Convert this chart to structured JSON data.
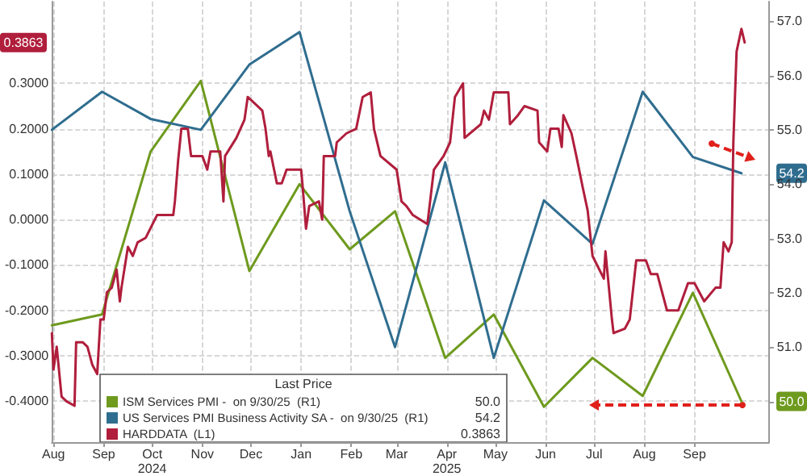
{
  "chart_data": {
    "type": "line",
    "xlim": [
      "2024-07-31",
      "2025-10-17"
    ],
    "xticks": [
      {
        "value": "2024-08-01",
        "label": "Aug"
      },
      {
        "value": "2024-09-01",
        "label": "Sep"
      },
      {
        "value": "2024-10-01",
        "label": "Oct\n2024"
      },
      {
        "value": "2024-11-01",
        "label": "Nov"
      },
      {
        "value": "2024-12-01",
        "label": "Dec"
      },
      {
        "value": "2025-01-01",
        "label": "Jan"
      },
      {
        "value": "2025-02-01",
        "label": "Feb"
      },
      {
        "value": "2025-03-01",
        "label": "Mar"
      },
      {
        "value": "2025-04-01",
        "label": "Apr\n2025"
      },
      {
        "value": "2025-05-01",
        "label": "May"
      },
      {
        "value": "2025-06-01",
        "label": "Jun"
      },
      {
        "value": "2025-07-01",
        "label": "Jul"
      },
      {
        "value": "2025-08-01",
        "label": "Aug"
      },
      {
        "value": "2025-09-01",
        "label": "Sep"
      }
    ],
    "ylim": [
      -0.49,
      0.48
    ],
    "yticks": [
      {
        "value": -0.4,
        "label": "-0.4000"
      },
      {
        "value": -0.3,
        "label": "-0.3000"
      },
      {
        "value": -0.2,
        "label": "-0.2000"
      },
      {
        "value": -0.1,
        "label": "-0.1000"
      },
      {
        "value": 0,
        "label": "0.0000"
      },
      {
        "value": 0.1,
        "label": "0.1000"
      },
      {
        "value": 0.2,
        "label": "0.2000"
      },
      {
        "value": 0.3,
        "label": "0.3000"
      }
    ],
    "y2lim": [
      49.25,
      57.36
    ],
    "y2ticks": [
      {
        "value": 50,
        "label": null
      },
      {
        "value": 51,
        "label": "51.0"
      },
      {
        "value": 52,
        "label": "52.0"
      },
      {
        "value": 53,
        "label": "53.0"
      },
      {
        "value": 54,
        "label": "54.0"
      },
      {
        "value": 55,
        "label": "55.0"
      },
      {
        "value": 56,
        "label": "56.0"
      },
      {
        "value": 57,
        "label": "57.0"
      }
    ],
    "grid": true,
    "legend": "bottom left",
    "legend_title": "Last Price",
    "marker": "none",
    "line_style": "solid",
    "annotations": [
      "50.0",
      "54.2",
      "0.3863"
    ],
    "series": [
      {
        "name": "ISM Services PMI -  on 9/30/25  (R1)",
        "color": "#6e9a1e",
        "axis": "y2",
        "x": [
          "2024-07-31",
          "2024-08-31",
          "2024-09-30",
          "2024-10-31",
          "2024-11-30",
          "2024-12-31",
          "2025-01-31",
          "2025-02-28",
          "2025-03-31",
          "2025-04-30",
          "2025-05-31",
          "2025-06-30",
          "2025-07-31",
          "2025-08-31",
          "2025-09-30"
        ],
        "values": [
          51.4,
          51.6,
          54.6,
          55.9,
          52.4,
          54.0,
          52.8,
          53.5,
          50.8,
          51.6,
          49.9,
          50.8,
          50.1,
          52.0,
          50.0
        ]
      },
      {
        "name": "US Services PMI Business Activity SA -  on 9/30/25  (R1)",
        "color": "#2f6d8f",
        "axis": "y2",
        "x": [
          "2024-07-31",
          "2024-08-31",
          "2024-09-30",
          "2024-10-31",
          "2024-11-30",
          "2024-12-31",
          "2025-01-31",
          "2025-02-28",
          "2025-03-31",
          "2025-04-30",
          "2025-05-31",
          "2025-06-30",
          "2025-07-31",
          "2025-08-31",
          "2025-09-30"
        ],
        "values": [
          55.0,
          55.7,
          55.2,
          55.0,
          56.2,
          56.8,
          53.5,
          51.0,
          54.4,
          50.8,
          53.7,
          52.9,
          55.7,
          54.5,
          54.2
        ]
      },
      {
        "name": "HARDDATA  (L1)",
        "color": "#b01e3c",
        "axis": "y",
        "x": [
          "2024-07-31",
          "2024-08-01",
          "2024-08-03",
          "2024-08-06",
          "2024-08-09",
          "2024-08-14",
          "2024-08-15",
          "2024-08-19",
          "2024-08-22",
          "2024-08-25",
          "2024-08-28",
          "2024-08-30",
          "2024-09-01",
          "2024-09-03",
          "2024-09-06",
          "2024-09-09",
          "2024-09-11",
          "2024-09-12",
          "2024-09-16",
          "2024-09-19",
          "2024-09-22",
          "2024-09-27",
          "2024-10-04",
          "2024-10-14",
          "2024-10-15",
          "2024-10-17",
          "2024-10-19",
          "2024-10-23",
          "2024-10-25",
          "2024-11-01",
          "2024-11-04",
          "2024-11-06",
          "2024-11-12",
          "2024-11-14",
          "2024-11-15",
          "2024-11-22",
          "2024-11-27",
          "2024-11-29",
          "2024-12-05",
          "2024-12-08",
          "2024-12-10",
          "2024-12-12",
          "2024-12-13",
          "2024-12-17",
          "2024-12-20",
          "2024-12-23",
          "2025-01-01",
          "2025-01-02",
          "2025-01-04",
          "2025-01-06",
          "2025-01-12",
          "2025-01-14",
          "2025-01-15",
          "2025-01-22",
          "2025-01-23",
          "2025-01-29",
          "2025-02-04",
          "2025-02-08",
          "2025-02-13",
          "2025-02-15",
          "2025-02-19",
          "2025-03-01",
          "2025-03-04",
          "2025-03-07",
          "2025-03-11",
          "2025-03-20",
          "2025-03-24",
          "2025-03-30",
          "2025-04-03",
          "2025-04-06",
          "2025-04-11",
          "2025-04-12",
          "2025-04-22",
          "2025-04-24",
          "2025-04-27",
          "2025-04-30",
          "2025-05-09",
          "2025-05-10",
          "2025-05-15",
          "2025-05-19",
          "2025-05-27",
          "2025-05-28",
          "2025-06-02",
          "2025-06-04",
          "2025-06-09",
          "2025-06-11",
          "2025-06-12",
          "2025-06-17",
          "2025-06-20",
          "2025-06-24",
          "2025-06-27",
          "2025-06-30",
          "2025-07-07",
          "2025-07-08",
          "2025-07-12",
          "2025-07-13",
          "2025-07-20",
          "2025-07-23",
          "2025-07-27",
          "2025-08-02",
          "2025-08-05",
          "2025-08-09",
          "2025-08-12",
          "2025-08-15",
          "2025-08-22",
          "2025-08-28",
          "2025-09-01",
          "2025-09-07",
          "2025-09-14",
          "2025-09-17",
          "2025-09-19",
          "2025-09-22",
          "2025-09-24",
          "2025-09-25",
          "2025-09-27",
          "2025-09-30",
          "2025-10-02"
        ],
        "values": [
          -0.25,
          -0.33,
          -0.28,
          -0.39,
          -0.4,
          -0.41,
          -0.27,
          -0.27,
          -0.28,
          -0.32,
          -0.34,
          -0.22,
          -0.22,
          -0.16,
          -0.15,
          -0.11,
          -0.18,
          -0.15,
          -0.06,
          -0.08,
          -0.05,
          -0.04,
          0.01,
          0.01,
          0.04,
          0.13,
          0.2,
          0.2,
          0.14,
          0.14,
          0.11,
          0.15,
          0.15,
          0.04,
          0.14,
          0.18,
          0.22,
          0.27,
          0.25,
          0.24,
          0.2,
          0.14,
          0.15,
          0.08,
          0.08,
          0.11,
          0.11,
          0.07,
          -0.02,
          0.03,
          0.04,
          0.0,
          0.14,
          0.14,
          0.17,
          0.19,
          0.2,
          0.27,
          0.28,
          0.2,
          0.14,
          0.11,
          0.04,
          0.03,
          0.01,
          -0.01,
          0.11,
          0.14,
          0.17,
          0.27,
          0.3,
          0.18,
          0.21,
          0.24,
          0.22,
          0.28,
          0.28,
          0.21,
          0.23,
          0.25,
          0.24,
          0.17,
          0.15,
          0.2,
          0.2,
          0.16,
          0.23,
          0.19,
          0.14,
          0.07,
          0.02,
          -0.08,
          -0.13,
          -0.07,
          -0.22,
          -0.25,
          -0.24,
          -0.22,
          -0.09,
          -0.09,
          -0.12,
          -0.12,
          -0.16,
          -0.2,
          -0.2,
          -0.14,
          -0.14,
          -0.18,
          -0.15,
          -0.15,
          -0.05,
          -0.07,
          -0.05,
          0.17,
          0.37,
          0.42,
          0.39
        ]
      }
    ]
  }
}
